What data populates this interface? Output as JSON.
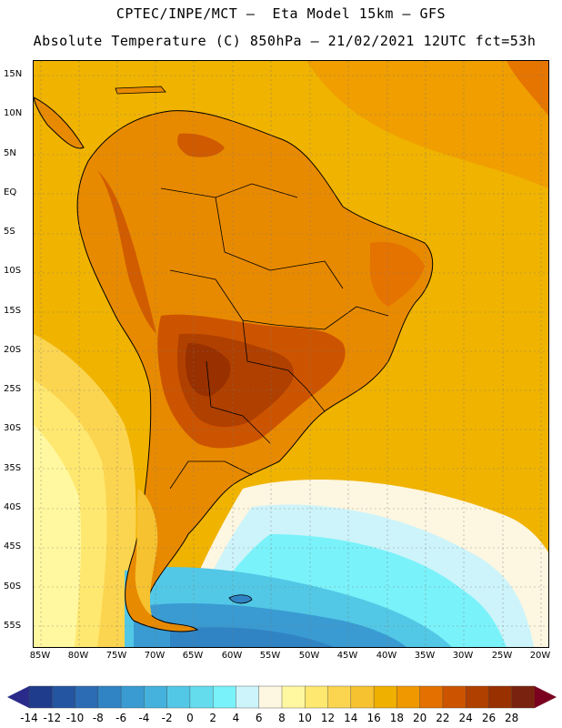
{
  "header": {
    "title_line_1": "CPTEC/INPE/MCT –  Eta Model 15km – GFS",
    "title_line_2": "Absolute Temperature (C) 850hPa – 21/02/2021 12UTC fct=53h"
  },
  "map": {
    "latitude_labels": [
      "15N",
      "10N",
      "5N",
      "EQ",
      "5S",
      "10S",
      "15S",
      "20S",
      "25S",
      "30S",
      "35S",
      "40S",
      "45S",
      "50S",
      "55S"
    ],
    "longitude_labels": [
      "85W",
      "80W",
      "75W",
      "70W",
      "65W",
      "60W",
      "55W",
      "50W",
      "45W",
      "40W",
      "35W",
      "30W",
      "25W",
      "20W"
    ],
    "ocean_color": "#f0b300",
    "land_base_color": "#e88a00",
    "hot_core_color": "#b04000",
    "cold_ocean_color": "#48b8e0"
  },
  "colorbar": {
    "labels": [
      "-14",
      "-12",
      "-10",
      "-8",
      "-6",
      "-4",
      "-2",
      "0",
      "2",
      "4",
      "6",
      "8",
      "10",
      "12",
      "14",
      "16",
      "18",
      "20",
      "22",
      "24",
      "26",
      "28"
    ],
    "colors": [
      "#1f3c8c",
      "#2455a0",
      "#2b6cb4",
      "#3184c4",
      "#3a9bd2",
      "#44b2dc",
      "#52c8e6",
      "#64dcee",
      "#7af2fa",
      "#cdf4fa",
      "#fdf6e0",
      "#fff8a0",
      "#ffe870",
      "#fbd550",
      "#f6c230",
      "#f0b000",
      "#f09800",
      "#e47000",
      "#cc5400",
      "#b04000",
      "#983000",
      "#7a2210"
    ],
    "under_color": "#2a2a8a",
    "over_color": "#7a0020"
  }
}
